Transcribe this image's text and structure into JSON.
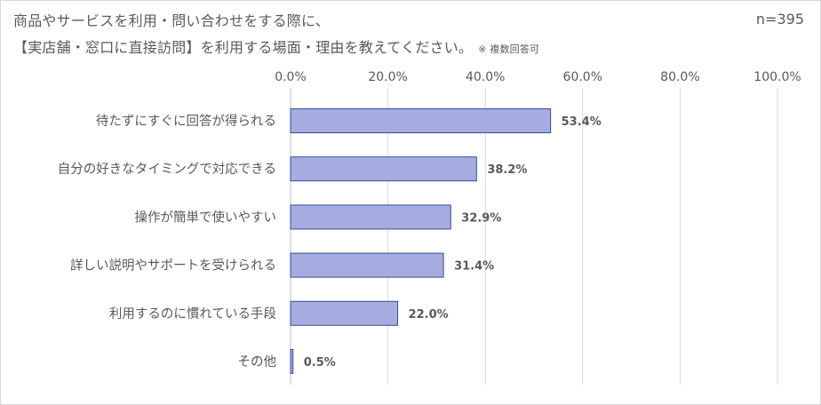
{
  "title": {
    "line1": "商品やサービスを利用・問い合わせをする際に、",
    "line2": "【実店舗・窓口に直接訪問】を利用する場面・理由を教えてください。",
    "note": "※ 複数回答可"
  },
  "sample_size": "n=395",
  "chart_data": {
    "type": "bar",
    "orientation": "horizontal",
    "categories": [
      "待たずにすぐに回答が得られる",
      "自分の好きなタイミングで対応できる",
      "操作が簡単で使いやすい",
      "詳しい説明やサポートを受けられる",
      "利用するのに慣れている手段",
      "その他"
    ],
    "values": [
      53.4,
      38.2,
      32.9,
      31.4,
      22.0,
      0.5
    ],
    "value_labels": [
      "53.4%",
      "38.2%",
      "32.9%",
      "31.4%",
      "22.0%",
      "0.5%"
    ],
    "xlim": [
      0,
      100
    ],
    "x_ticks": [
      0,
      20,
      40,
      60,
      80,
      100
    ],
    "x_tick_labels": [
      "0.0%",
      "20.0%",
      "40.0%",
      "60.0%",
      "80.0%",
      "100.0%"
    ],
    "grid": true,
    "x_axis_position": "top",
    "colors": {
      "bar_fill": "#a5ade0",
      "bar_stroke": "#3a4a9c",
      "grid": "#d9d9d9",
      "text": "#595959"
    }
  }
}
